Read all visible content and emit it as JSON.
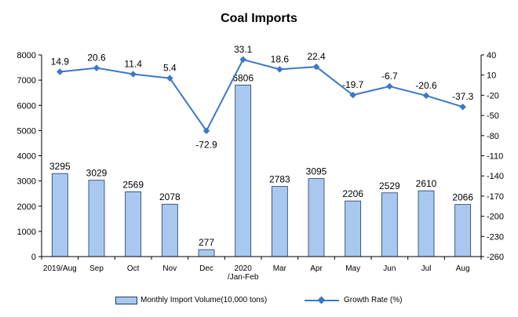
{
  "chart_data": {
    "type": "bar",
    "title": "Coal Imports",
    "categories": [
      [
        "2019/Aug"
      ],
      [
        "Sep"
      ],
      [
        "Oct"
      ],
      [
        "Nov"
      ],
      [
        "Dec"
      ],
      [
        "2020",
        "/Jan-Feb"
      ],
      [
        "Mar"
      ],
      [
        "Apr"
      ],
      [
        "May"
      ],
      [
        "Jun"
      ],
      [
        "Jul"
      ],
      [
        "Aug"
      ]
    ],
    "series": [
      {
        "name": "Monthly Import Volume(10,000 tons)",
        "type": "bar",
        "axis": "left",
        "color": "#a8c8f0",
        "values": [
          3295,
          3029,
          2569,
          2078,
          277,
          6806,
          2783,
          3095,
          2206,
          2529,
          2610,
          2066
        ]
      },
      {
        "name": "Growth Rate (%)",
        "type": "line",
        "axis": "right",
        "color": "#3a78c8",
        "values": [
          14.9,
          20.6,
          11.4,
          5.4,
          -72.9,
          33.1,
          18.6,
          22.4,
          -19.7,
          -6.7,
          -20.6,
          -37.3
        ]
      }
    ],
    "y_left": {
      "min": 0,
      "max": 8000,
      "step": 1000
    },
    "y_right": {
      "min": -260,
      "max": 40,
      "step": 30
    },
    "grid": false,
    "legend_position": "bottom"
  }
}
